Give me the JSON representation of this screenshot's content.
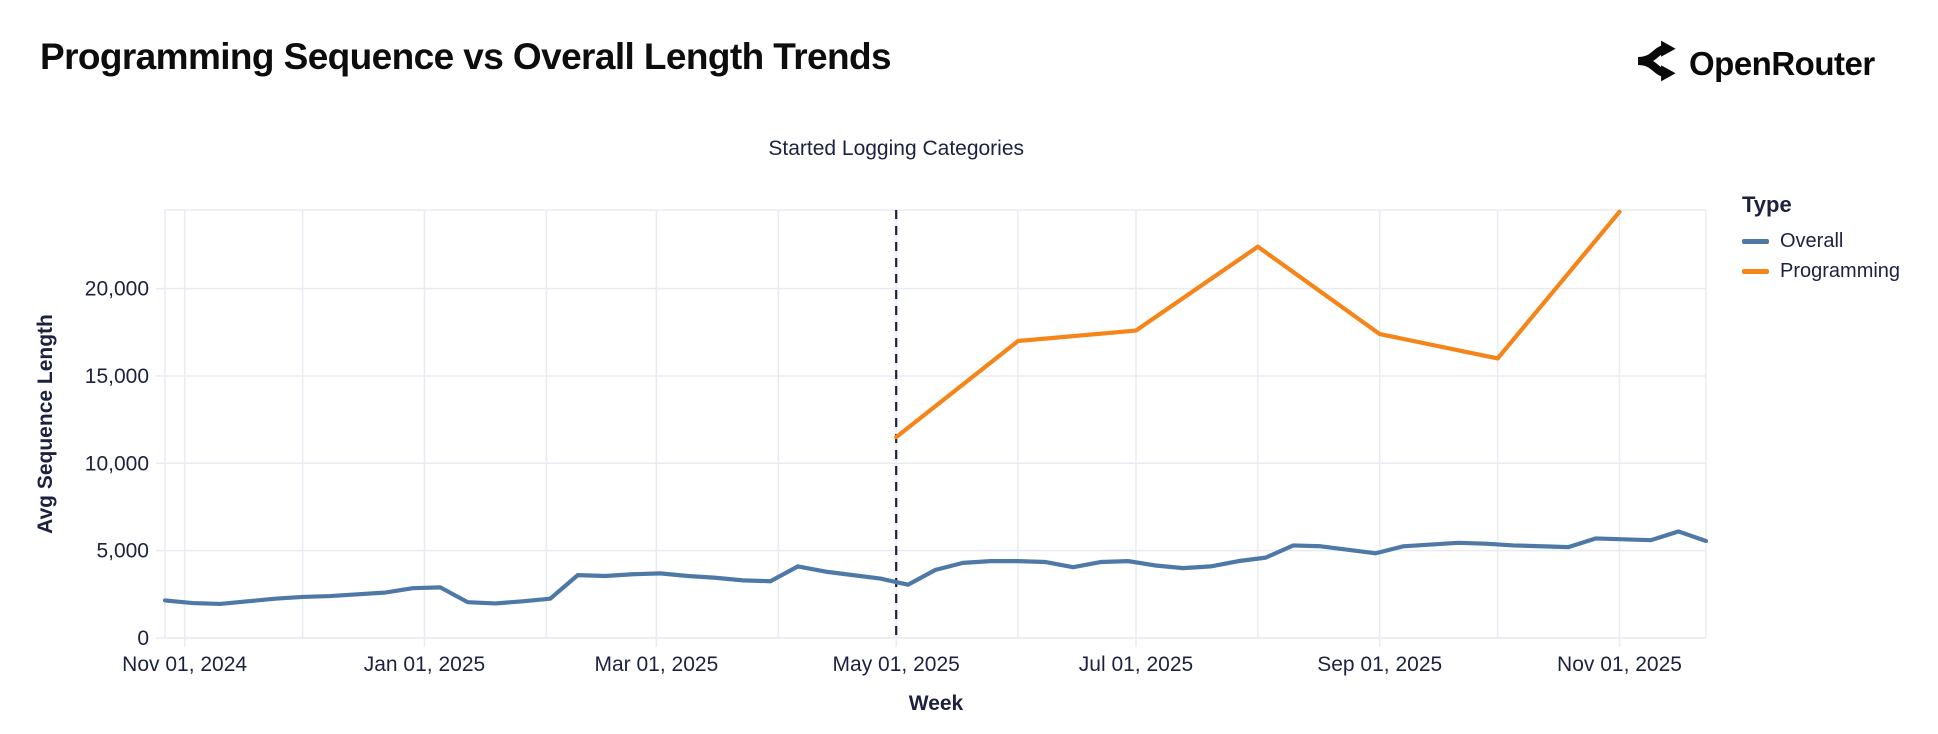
{
  "header": {
    "title": "Programming Sequence vs Overall Length Trends",
    "logo_text": "OpenRouter",
    "logo_icon": "openrouter-fork-arrows"
  },
  "legend": {
    "title": "Type",
    "items": [
      {
        "label": "Overall",
        "color": "#4E79A7"
      },
      {
        "label": "Programming",
        "color": "#F58518"
      }
    ]
  },
  "colors": {
    "overall": "#4E79A7",
    "programming": "#F58518",
    "text": "#1B2240",
    "title_text": "#0D0D0D",
    "grid": "#E9EBF2",
    "annotation_line": "#1B2240",
    "background": "#FFFFFF"
  },
  "chart_data": {
    "type": "line",
    "title": "Programming Sequence vs Overall Length Trends",
    "xlabel": "Week",
    "ylabel": "Avg Sequence Length",
    "x_domain": [
      "2024-10-27",
      "2025-11-23"
    ],
    "ylim": [
      0,
      24500
    ],
    "grid": true,
    "legend_position": "right",
    "annotation": {
      "label": "Started Logging Categories",
      "date": "2025-05-01"
    },
    "y_ticks": [
      {
        "value": 0,
        "label": "0"
      },
      {
        "value": 5000,
        "label": "5,000"
      },
      {
        "value": 10000,
        "label": "10,000"
      },
      {
        "value": 15000,
        "label": "15,000"
      },
      {
        "value": 20000,
        "label": "20,000"
      }
    ],
    "x_ticks": [
      {
        "date": "2024-11-01",
        "label": "Nov 01, 2024"
      },
      {
        "date": "2025-01-01",
        "label": "Jan 01, 2025"
      },
      {
        "date": "2025-03-01",
        "label": "Mar 01, 2025"
      },
      {
        "date": "2025-05-01",
        "label": "May 01, 2025"
      },
      {
        "date": "2025-07-01",
        "label": "Jul 01, 2025"
      },
      {
        "date": "2025-09-01",
        "label": "Sep 01, 2025"
      },
      {
        "date": "2025-11-01",
        "label": "Nov 01, 2025"
      }
    ],
    "x_gridlines": [
      "2024-11-01",
      "2024-12-01",
      "2025-01-01",
      "2025-02-01",
      "2025-03-01",
      "2025-04-01",
      "2025-05-01",
      "2025-06-01",
      "2025-07-01",
      "2025-08-01",
      "2025-09-01",
      "2025-10-01",
      "2025-11-01"
    ],
    "series": [
      {
        "name": "Overall",
        "color": "#4E79A7",
        "x": [
          "2024-10-27",
          "2024-11-03",
          "2024-11-10",
          "2024-11-17",
          "2024-11-24",
          "2024-12-01",
          "2024-12-08",
          "2024-12-15",
          "2024-12-22",
          "2024-12-29",
          "2025-01-05",
          "2025-01-12",
          "2025-01-19",
          "2025-01-26",
          "2025-02-02",
          "2025-02-09",
          "2025-02-16",
          "2025-02-23",
          "2025-03-02",
          "2025-03-09",
          "2025-03-16",
          "2025-03-23",
          "2025-03-30",
          "2025-04-06",
          "2025-04-13",
          "2025-04-20",
          "2025-04-27",
          "2025-05-04",
          "2025-05-11",
          "2025-05-18",
          "2025-05-25",
          "2025-06-01",
          "2025-06-08",
          "2025-06-15",
          "2025-06-22",
          "2025-06-29",
          "2025-07-06",
          "2025-07-13",
          "2025-07-20",
          "2025-07-27",
          "2025-08-03",
          "2025-08-10",
          "2025-08-17",
          "2025-08-24",
          "2025-08-31",
          "2025-09-07",
          "2025-09-14",
          "2025-09-21",
          "2025-09-28",
          "2025-10-05",
          "2025-10-12",
          "2025-10-19",
          "2025-10-26",
          "2025-11-02",
          "2025-11-09",
          "2025-11-16",
          "2025-11-23"
        ],
        "values": [
          2150,
          2000,
          1950,
          2100,
          2250,
          2350,
          2400,
          2500,
          2600,
          2850,
          2900,
          2050,
          1980,
          2100,
          2250,
          3600,
          3550,
          3650,
          3700,
          3550,
          3450,
          3300,
          3250,
          4100,
          3800,
          3600,
          3400,
          3050,
          3900,
          4300,
          4400,
          4400,
          4350,
          4050,
          4350,
          4400,
          4150,
          4000,
          4100,
          4400,
          4600,
          5300,
          5250,
          5050,
          4850,
          5250,
          5350,
          5450,
          5400,
          5300,
          5250,
          5200,
          5700,
          5650,
          5600,
          6100,
          5550
        ]
      },
      {
        "name": "Programming",
        "color": "#F58518",
        "x": [
          "2025-05-01",
          "2025-06-01",
          "2025-07-01",
          "2025-08-01",
          "2025-09-01",
          "2025-10-01",
          "2025-11-01"
        ],
        "values": [
          11500,
          17000,
          17600,
          22400,
          17400,
          16000,
          24400
        ]
      }
    ]
  }
}
